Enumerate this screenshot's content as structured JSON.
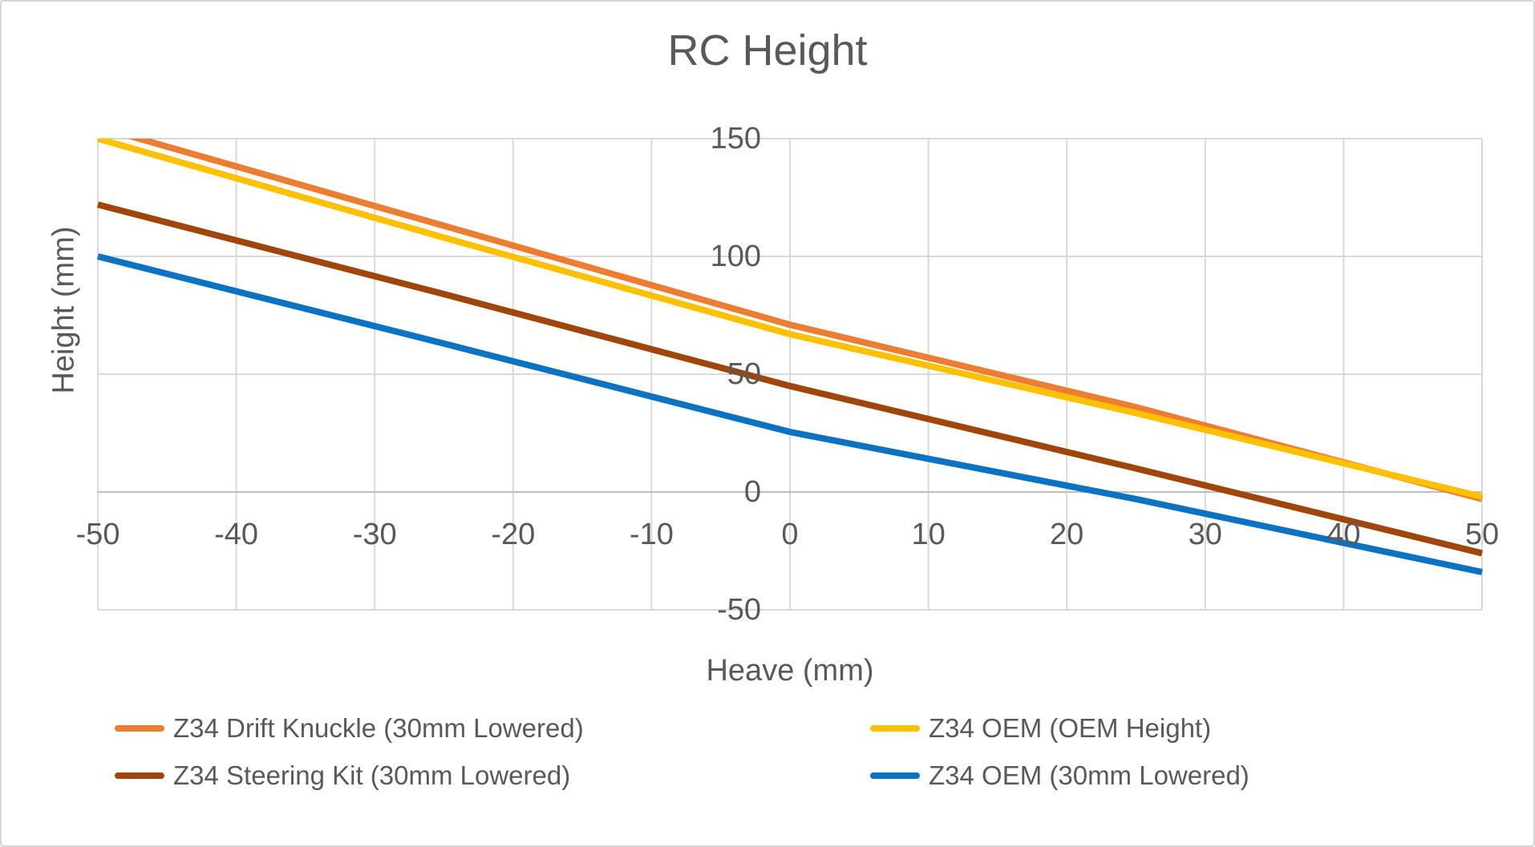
{
  "window": {
    "background": "#FFFFFF",
    "border_color": "#D6D6D6"
  },
  "chart_data": {
    "type": "line",
    "title": "RC Height",
    "xlabel": "Heave (mm)",
    "ylabel": "Height (mm)",
    "xlim": [
      -50,
      50
    ],
    "ylim": [
      -50,
      150
    ],
    "x_ticks": [
      -50,
      -40,
      -30,
      -20,
      -10,
      0,
      10,
      20,
      30,
      40,
      50
    ],
    "y_ticks": [
      150,
      100,
      50,
      0,
      -50
    ],
    "grid": true,
    "legend_position": "bottom",
    "text_color": "#595959",
    "gridline_color": "#D9D9D9",
    "axis_line_color": "#BFBFBF",
    "x": [
      -50,
      -25,
      0,
      25,
      50
    ],
    "series": [
      {
        "name": "Z34 Drift Knuckle (30mm Lowered)",
        "color": "#ED7D31",
        "values": [
          155,
          113,
          71,
          36,
          -3
        ]
      },
      {
        "name": "Z34 OEM (OEM Height)",
        "color": "#FFC000",
        "values": [
          150,
          108,
          67,
          33.5,
          -2
        ]
      },
      {
        "name": "Z34 Steering Kit (30mm Lowered)",
        "color": "#A0450B",
        "values": [
          122,
          84,
          45,
          10,
          -26
        ]
      },
      {
        "name": "Z34 OEM (30mm Lowered)",
        "color": "#0E72C2",
        "values": [
          100,
          63,
          25.5,
          -3,
          -34
        ]
      }
    ]
  },
  "legend": {
    "entries": [
      {
        "label": "Z34 Drift Knuckle (30mm Lowered)",
        "color": "#ED7D31"
      },
      {
        "label": "Z34 OEM (OEM Height)",
        "color": "#FFC000"
      },
      {
        "label": "Z34 Steering Kit (30mm Lowered)",
        "color": "#A0450B"
      },
      {
        "label": "Z34 OEM (30mm Lowered)",
        "color": "#0E72C2"
      }
    ]
  }
}
